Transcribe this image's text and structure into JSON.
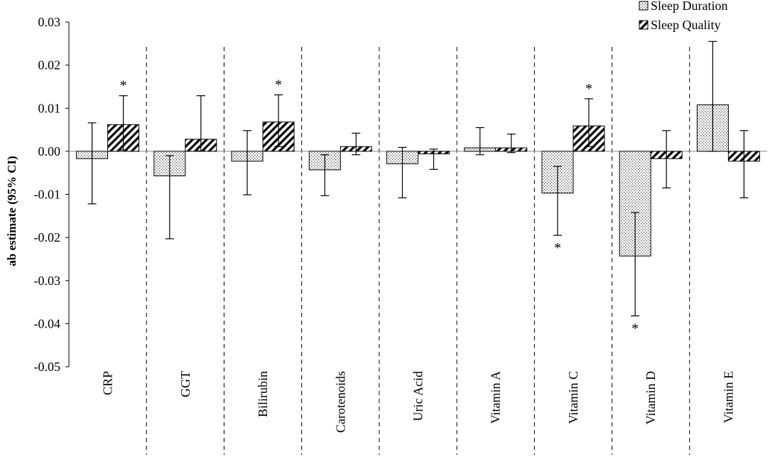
{
  "chart_data": {
    "type": "bar",
    "title": "",
    "xlabel": "",
    "ylabel": "ab estimate (95% CI)",
    "ylim": [
      -0.05,
      0.03
    ],
    "yticks": [
      "0.03",
      "0.02",
      "0.01",
      "0.00",
      "-0.01",
      "-0.02",
      "-0.03",
      "-0.04",
      "-0.05"
    ],
    "ytick_values": [
      0.03,
      0.02,
      0.01,
      0.0,
      -0.01,
      -0.02,
      -0.03,
      -0.04,
      -0.05
    ],
    "grid": false,
    "legend_position": "top-right",
    "categories": [
      "CRP",
      "GGT",
      "Bilirubin",
      "Carotenoids",
      "Uric Acid",
      "Vitamin A",
      "Vitamin C",
      "Vitamin D",
      "Vitamin E"
    ],
    "series": [
      {
        "name": "Sleep Duration",
        "pattern": "dots",
        "values": [
          -0.0017,
          -0.0057,
          -0.0023,
          -0.0043,
          -0.0029,
          0.0008,
          -0.0097,
          -0.0243,
          0.0108
        ],
        "ci_low": [
          -0.0122,
          -0.0203,
          -0.0101,
          -0.0103,
          -0.0108,
          -0.0008,
          -0.0195,
          -0.0382,
          0.0
        ],
        "ci_high": [
          0.0066,
          -0.001,
          0.0048,
          -0.0008,
          0.0009,
          0.0055,
          -0.0035,
          -0.0142,
          0.0255
        ],
        "significant": [
          false,
          false,
          false,
          false,
          false,
          false,
          true,
          true,
          false
        ]
      },
      {
        "name": "Sleep Quality",
        "pattern": "diagonal-hatch",
        "values": [
          0.0062,
          0.0028,
          0.0068,
          0.0011,
          -0.0006,
          0.0008,
          0.0059,
          -0.0017,
          -0.0023
        ],
        "ci_low": [
          0.0003,
          0.0001,
          0.0011,
          -0.0008,
          -0.0042,
          -0.0003,
          0.0011,
          -0.0085,
          -0.0108
        ],
        "ci_high": [
          0.0129,
          0.0129,
          0.0131,
          0.0042,
          0.0005,
          0.004,
          0.0122,
          0.0048,
          0.0048
        ],
        "significant": [
          true,
          false,
          true,
          false,
          false,
          false,
          true,
          false,
          false
        ]
      }
    ],
    "significance_marker": "*"
  }
}
